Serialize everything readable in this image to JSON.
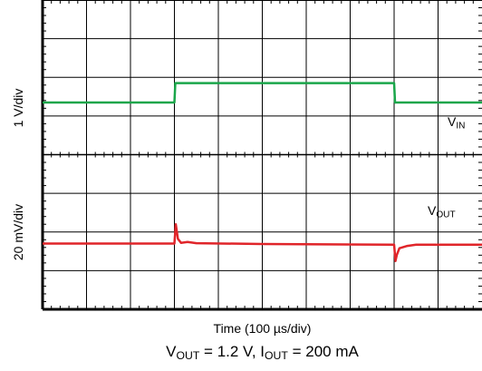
{
  "chart_data": {
    "type": "line",
    "grid": true,
    "x_divisions": 10,
    "y_divisions": 8,
    "y_labels": {
      "top_panel": "1 V/div",
      "bottom_panel": "20 mV/div"
    },
    "xlabel_prefix": "Time (100 ",
    "xlabel_unit_greek": "µ",
    "xlabel_suffix": "s/div)",
    "x_unit": "div",
    "series": [
      {
        "name_main": "V",
        "name_sub": "IN",
        "color": "#1aa64a",
        "x": [
          0,
          3,
          3.02,
          8,
          8.02,
          10
        ],
        "y": [
          1.35,
          1.35,
          1.85,
          1.85,
          1.35,
          1.35
        ]
      },
      {
        "name_main": "V",
        "name_sub": "OUT",
        "color": "#e0252a",
        "x": [
          0,
          3.0,
          3.03,
          3.08,
          3.15,
          3.3,
          3.5,
          5,
          8.0,
          8.03,
          8.06,
          8.12,
          8.3,
          8.5,
          10
        ],
        "y": [
          -2.3,
          -2.3,
          -1.8,
          -2.18,
          -2.28,
          -2.26,
          -2.29,
          -2.31,
          -2.33,
          -2.75,
          -2.6,
          -2.42,
          -2.36,
          -2.33,
          -2.33
        ]
      }
    ]
  },
  "caption": {
    "p1_main": "V",
    "p1_sub": "OUT",
    "p1_text": " = 1.2 V, ",
    "p2_main": "I",
    "p2_sub": "OUT",
    "p2_text": " = 200 mA"
  }
}
